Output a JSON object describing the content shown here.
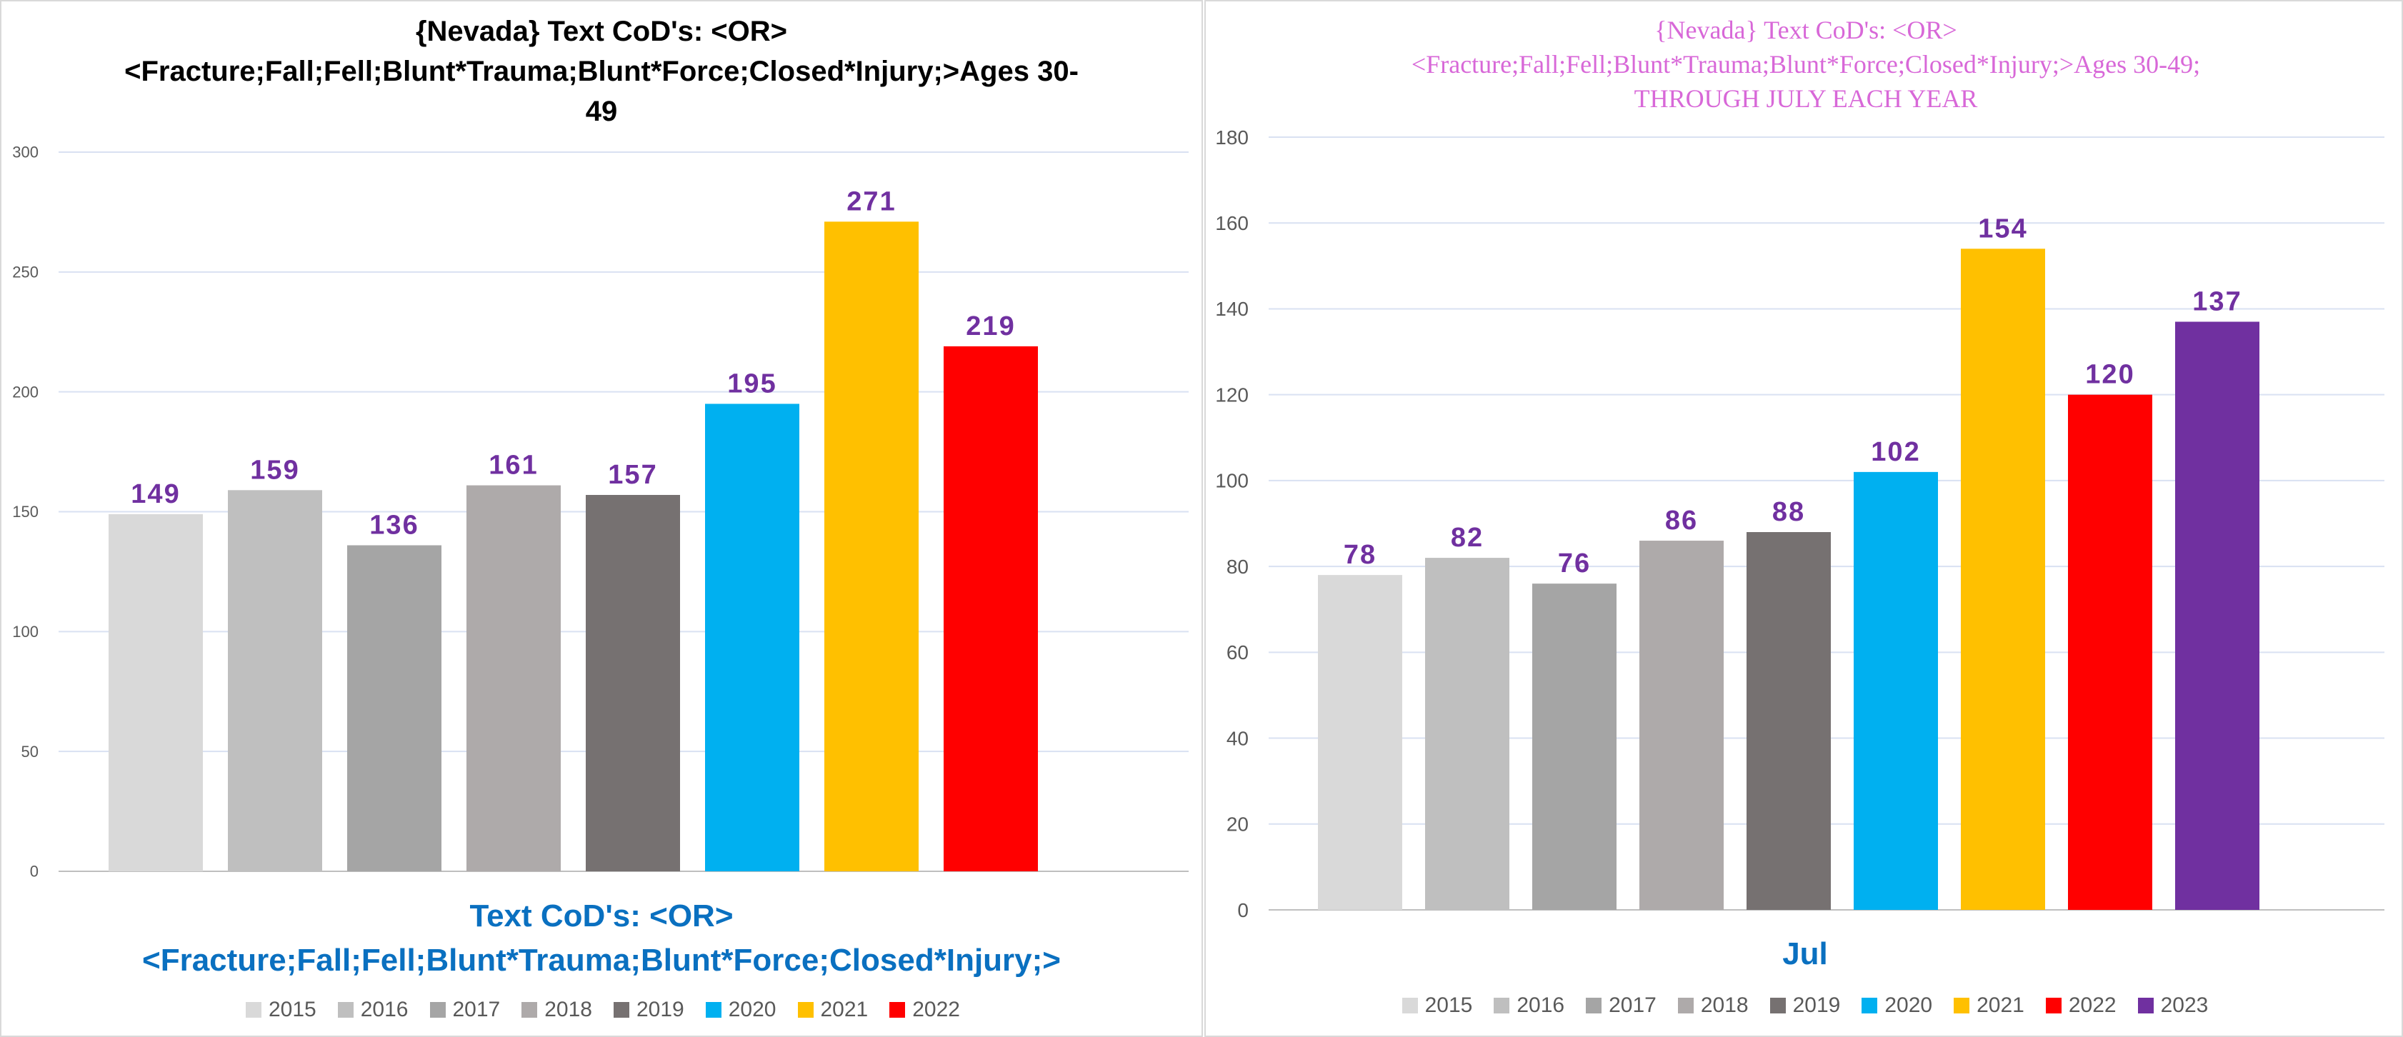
{
  "chart_data": [
    {
      "type": "bar",
      "title": "{Nevada}  Text CoD's: <OR> <Fracture;Fall;Fell;Blunt*Trauma;Blunt*Force;Closed*Injury;>Ages 30-49",
      "xlabel": "Text CoD's: <OR> <Fracture;Fall;Fell;Blunt*Trauma;Blunt*Force;Closed*Injury;>",
      "ylabel": "",
      "ylim": [
        0,
        300
      ],
      "yticks": [
        0,
        50,
        100,
        150,
        200,
        250,
        300
      ],
      "categories": [
        "2015",
        "2016",
        "2017",
        "2018",
        "2019",
        "2020",
        "2021",
        "2022"
      ],
      "values": [
        149,
        159,
        136,
        161,
        157,
        195,
        271,
        219
      ],
      "colors": [
        "#d9d9d9",
        "#bfbfbf",
        "#a5a5a5",
        "#aeaaaa",
        "#767171",
        "#00b0f0",
        "#ffc000",
        "#ff0000"
      ],
      "legend_position": "bottom",
      "grid": true
    },
    {
      "type": "bar",
      "title": "{Nevada}   Text CoD's: <OR> <Fracture;Fall;Fell;Blunt*Trauma;Blunt*Force;Closed*Injury;>Ages 30-49; THROUGH JULY EACH YEAR",
      "xlabel": "Jul",
      "ylabel": "",
      "ylim": [
        0,
        180
      ],
      "yticks": [
        0,
        20,
        40,
        60,
        80,
        100,
        120,
        140,
        160,
        180
      ],
      "categories": [
        "2015",
        "2016",
        "2017",
        "2018",
        "2019",
        "2020",
        "2021",
        "2022",
        "2023"
      ],
      "values": [
        78,
        82,
        76,
        86,
        88,
        102,
        154,
        120,
        137
      ],
      "colors": [
        "#d9d9d9",
        "#bfbfbf",
        "#a5a5a5",
        "#aeaaaa",
        "#767171",
        "#00b0f0",
        "#ffc000",
        "#ff0000",
        "#7030a0"
      ],
      "legend_position": "bottom",
      "grid": true
    }
  ],
  "left": {
    "title_line1": "{Nevada}  Text CoD's: <OR>",
    "title_line2": "<Fracture;Fall;Fell;Blunt*Trauma;Blunt*Force;Closed*Injury;>Ages 30-",
    "title_line3": "49",
    "xtitle_line1": "Text CoD's: <OR>",
    "xtitle_line2": "<Fracture;Fall;Fell;Blunt*Trauma;Blunt*Force;Closed*Injury;>"
  },
  "right": {
    "title_line1": "{Nevada}   Text CoD's: <OR>",
    "title_line2": "<Fracture;Fall;Fell;Blunt*Trauma;Blunt*Force;Closed*Injury;>Ages 30-49;",
    "title_line3": "THROUGH JULY EACH YEAR",
    "xtitle": "Jul"
  },
  "colors": {
    "data_label": "#7030a0",
    "axis_text": "#595959",
    "gridline": "#d9e1f2",
    "left_title": "#000000",
    "right_title": "#d868d8",
    "axis_title": "#0a70c0"
  }
}
